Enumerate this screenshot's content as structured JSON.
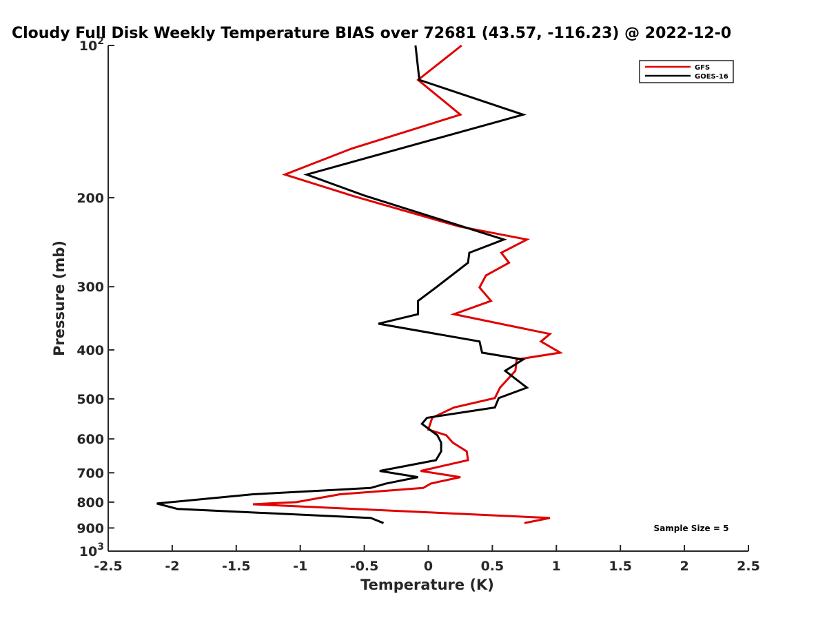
{
  "chart_data": {
    "type": "line",
    "title": "Cloudy Full Disk Weekly Temperature BIAS over 72681 (43.57, -116.23) @ 2022-12-0",
    "xlabel": "Temperature (K)",
    "ylabel": "Pressure (mb)",
    "xlim": [
      -2.5,
      2.5
    ],
    "ylim": [
      100,
      1000
    ],
    "y_scale": "log",
    "y_reversed": true,
    "grid": false,
    "x_ticks": [
      {
        "value": -2.5,
        "label": "-2.5"
      },
      {
        "value": -2,
        "label": "-2"
      },
      {
        "value": -1.5,
        "label": "-1.5"
      },
      {
        "value": -1,
        "label": "-1"
      },
      {
        "value": -0.5,
        "label": "-0.5"
      },
      {
        "value": 0,
        "label": "0"
      },
      {
        "value": 0.5,
        "label": "0.5"
      },
      {
        "value": 1,
        "label": "1"
      },
      {
        "value": 1.5,
        "label": "1.5"
      },
      {
        "value": 2,
        "label": "2"
      },
      {
        "value": 2.5,
        "label": "2.5"
      }
    ],
    "y_ticks": [
      {
        "value": 100,
        "label": "10",
        "sup": "2"
      },
      {
        "value": 200,
        "label": "200",
        "sup": ""
      },
      {
        "value": 300,
        "label": "300",
        "sup": ""
      },
      {
        "value": 400,
        "label": "400",
        "sup": ""
      },
      {
        "value": 500,
        "label": "500",
        "sup": ""
      },
      {
        "value": 600,
        "label": "600",
        "sup": ""
      },
      {
        "value": 700,
        "label": "700",
        "sup": ""
      },
      {
        "value": 800,
        "label": "800",
        "sup": ""
      },
      {
        "value": 900,
        "label": "900",
        "sup": ""
      },
      {
        "value": 1000,
        "label": "10",
        "sup": "3"
      }
    ],
    "legend_position": "top-right",
    "annotation": "Sample Size = 5",
    "series": [
      {
        "name": "GFS",
        "color": "#e00000",
        "points": [
          [
            0.26,
            100
          ],
          [
            -0.08,
            117
          ],
          [
            0.25,
            137
          ],
          [
            -0.6,
            160
          ],
          [
            -1.12,
            180
          ],
          [
            -0.6,
            198
          ],
          [
            0.24,
            228
          ],
          [
            0.77,
            242
          ],
          [
            0.57,
            257
          ],
          [
            0.63,
            269
          ],
          [
            0.45,
            285
          ],
          [
            0.4,
            301
          ],
          [
            0.49,
            320
          ],
          [
            0.2,
            340
          ],
          [
            0.95,
            372
          ],
          [
            0.88,
            385
          ],
          [
            1.03,
            405
          ],
          [
            0.69,
            418
          ],
          [
            0.68,
            440
          ],
          [
            0.56,
            475
          ],
          [
            0.52,
            498
          ],
          [
            0.2,
            520
          ],
          [
            0.03,
            545
          ],
          [
            0.0,
            575
          ],
          [
            0.14,
            590
          ],
          [
            0.19,
            610
          ],
          [
            0.3,
            635
          ],
          [
            0.31,
            661
          ],
          [
            -0.06,
            694
          ],
          [
            0.25,
            714
          ],
          [
            0.02,
            735
          ],
          [
            -0.04,
            750
          ],
          [
            -0.69,
            772
          ],
          [
            -1.03,
            800
          ],
          [
            -1.37,
            808
          ],
          [
            0.95,
            860
          ],
          [
            0.75,
            880
          ]
        ]
      },
      {
        "name": "GOES-16",
        "color": "#000000",
        "points": [
          [
            -0.1,
            100
          ],
          [
            -0.07,
            117
          ],
          [
            0.74,
            137
          ],
          [
            -0.95,
            180
          ],
          [
            -0.5,
            198
          ],
          [
            0.59,
            242
          ],
          [
            0.32,
            257
          ],
          [
            0.31,
            269
          ],
          [
            0.06,
            301
          ],
          [
            -0.08,
            320
          ],
          [
            -0.08,
            340
          ],
          [
            -0.39,
            355
          ],
          [
            0.4,
            385
          ],
          [
            0.42,
            405
          ],
          [
            0.74,
            418
          ],
          [
            0.6,
            440
          ],
          [
            0.77,
            475
          ],
          [
            0.55,
            498
          ],
          [
            0.52,
            520
          ],
          [
            -0.01,
            545
          ],
          [
            -0.05,
            560
          ],
          [
            0.07,
            590
          ],
          [
            0.1,
            610
          ],
          [
            0.1,
            635
          ],
          [
            0.06,
            661
          ],
          [
            -0.38,
            694
          ],
          [
            -0.08,
            714
          ],
          [
            -0.33,
            735
          ],
          [
            -0.45,
            750
          ],
          [
            -1.37,
            772
          ],
          [
            -2.12,
            805
          ],
          [
            -1.96,
            825
          ],
          [
            -0.45,
            860
          ],
          [
            -0.35,
            880
          ]
        ]
      }
    ]
  }
}
